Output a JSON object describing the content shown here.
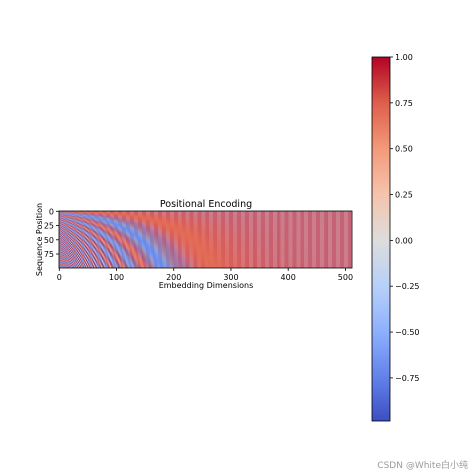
{
  "chart_data": {
    "type": "heatmap",
    "title": "Positional Encoding",
    "xlabel": "Embedding Dimensions",
    "ylabel": "Sequence Position",
    "x_range": [
      0,
      512
    ],
    "y_range": [
      0,
      100
    ],
    "x_ticks": [
      0,
      100,
      200,
      300,
      400,
      500
    ],
    "y_ticks": [
      0,
      25,
      50,
      75
    ],
    "y_inverted": true,
    "colormap": "coolwarm",
    "value_range": [
      -1.0,
      1.0
    ],
    "colorbar_ticks": [
      1.0,
      0.75,
      0.5,
      0.25,
      0.0,
      -0.25,
      -0.5,
      -0.75
    ],
    "colorbar_tick_labels": [
      "1.00",
      "0.75",
      "0.50",
      "0.25",
      "0.00",
      "−0.25",
      "−0.50",
      "−0.75"
    ],
    "encoding": "sinusoidal: even dims sin(pos/10000^(i/d)), odd dims cos(pos/10000^((i-1)/d)), d=512",
    "colorbar_position": "right",
    "grid": false
  },
  "watermark": "CSDN @White白小纯"
}
